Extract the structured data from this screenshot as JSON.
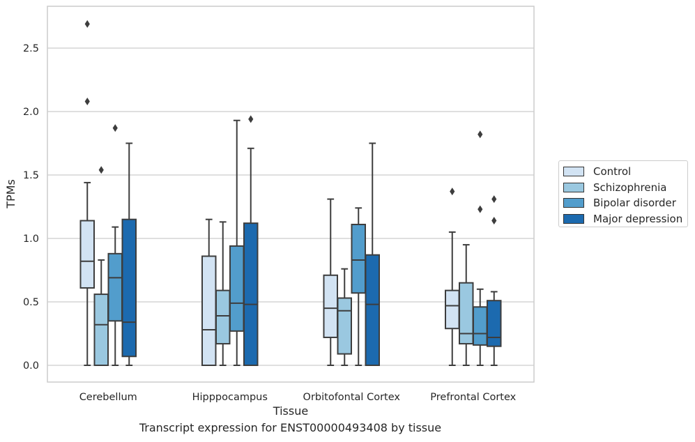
{
  "caption": "Transcript expression for ENST00000493408 by tissue",
  "chart_data": {
    "type": "box",
    "xlabel": "Tissue",
    "ylabel": "TPMs",
    "ylim": [
      -0.13,
      2.85
    ],
    "yticks": [
      0.0,
      0.5,
      1.0,
      1.5,
      2.0,
      2.5
    ],
    "ytick_labels": [
      "0.0",
      "0.5",
      "1.0",
      "1.5",
      "2.0",
      "2.5"
    ],
    "grid": "horizontal",
    "legend_position": "right",
    "categories": [
      "Cerebellum",
      "Hipppocampus",
      "Orbitofontal Cortex",
      "Prefrontal Cortex"
    ],
    "series": [
      {
        "name": "Control",
        "color": "#d2e3f3",
        "boxes": [
          {
            "whislo": 0.0,
            "q1": 0.61,
            "med": 0.82,
            "q3": 1.14,
            "whishi": 1.44,
            "fliers": [
              2.69,
              2.08
            ]
          },
          {
            "whislo": 0.0,
            "q1": 0.0,
            "med": 0.28,
            "q3": 0.86,
            "whishi": 1.15,
            "fliers": []
          },
          {
            "whislo": 0.0,
            "q1": 0.22,
            "med": 0.45,
            "q3": 0.71,
            "whishi": 1.31,
            "fliers": []
          },
          {
            "whislo": 0.0,
            "q1": 0.29,
            "med": 0.47,
            "q3": 0.59,
            "whishi": 1.05,
            "fliers": [
              1.37
            ]
          }
        ]
      },
      {
        "name": "Schizophrenia",
        "color": "#9ac8e0",
        "boxes": [
          {
            "whislo": 0.0,
            "q1": 0.0,
            "med": 0.32,
            "q3": 0.56,
            "whishi": 0.83,
            "fliers": [
              1.54
            ]
          },
          {
            "whislo": 0.0,
            "q1": 0.17,
            "med": 0.39,
            "q3": 0.59,
            "whishi": 1.13,
            "fliers": []
          },
          {
            "whislo": 0.0,
            "q1": 0.09,
            "med": 0.43,
            "q3": 0.53,
            "whishi": 0.76,
            "fliers": []
          },
          {
            "whislo": 0.0,
            "q1": 0.17,
            "med": 0.25,
            "q3": 0.65,
            "whishi": 0.95,
            "fliers": []
          }
        ]
      },
      {
        "name": "Bipolar disorder",
        "color": "#529dcc",
        "boxes": [
          {
            "whislo": 0.0,
            "q1": 0.35,
            "med": 0.69,
            "q3": 0.88,
            "whishi": 1.09,
            "fliers": [
              1.87
            ]
          },
          {
            "whislo": 0.0,
            "q1": 0.27,
            "med": 0.49,
            "q3": 0.94,
            "whishi": 1.93,
            "fliers": []
          },
          {
            "whislo": 0.0,
            "q1": 0.57,
            "med": 0.83,
            "q3": 1.11,
            "whishi": 1.24,
            "fliers": []
          },
          {
            "whislo": 0.0,
            "q1": 0.16,
            "med": 0.25,
            "q3": 0.46,
            "whishi": 0.6,
            "fliers": [
              1.82,
              1.23
            ]
          }
        ]
      },
      {
        "name": "Major depression",
        "color": "#1c6aaf",
        "boxes": [
          {
            "whislo": 0.0,
            "q1": 0.07,
            "med": 0.34,
            "q3": 1.15,
            "whishi": 1.75,
            "fliers": []
          },
          {
            "whislo": 0.0,
            "q1": 0.0,
            "med": 0.48,
            "q3": 1.12,
            "whishi": 1.71,
            "fliers": [
              1.94
            ]
          },
          {
            "whislo": 0.0,
            "q1": 0.0,
            "med": 0.48,
            "q3": 0.87,
            "whishi": 1.75,
            "fliers": []
          },
          {
            "whislo": 0.0,
            "q1": 0.15,
            "med": 0.22,
            "q3": 0.51,
            "whishi": 0.58,
            "fliers": [
              1.31,
              1.14
            ]
          }
        ]
      }
    ]
  }
}
